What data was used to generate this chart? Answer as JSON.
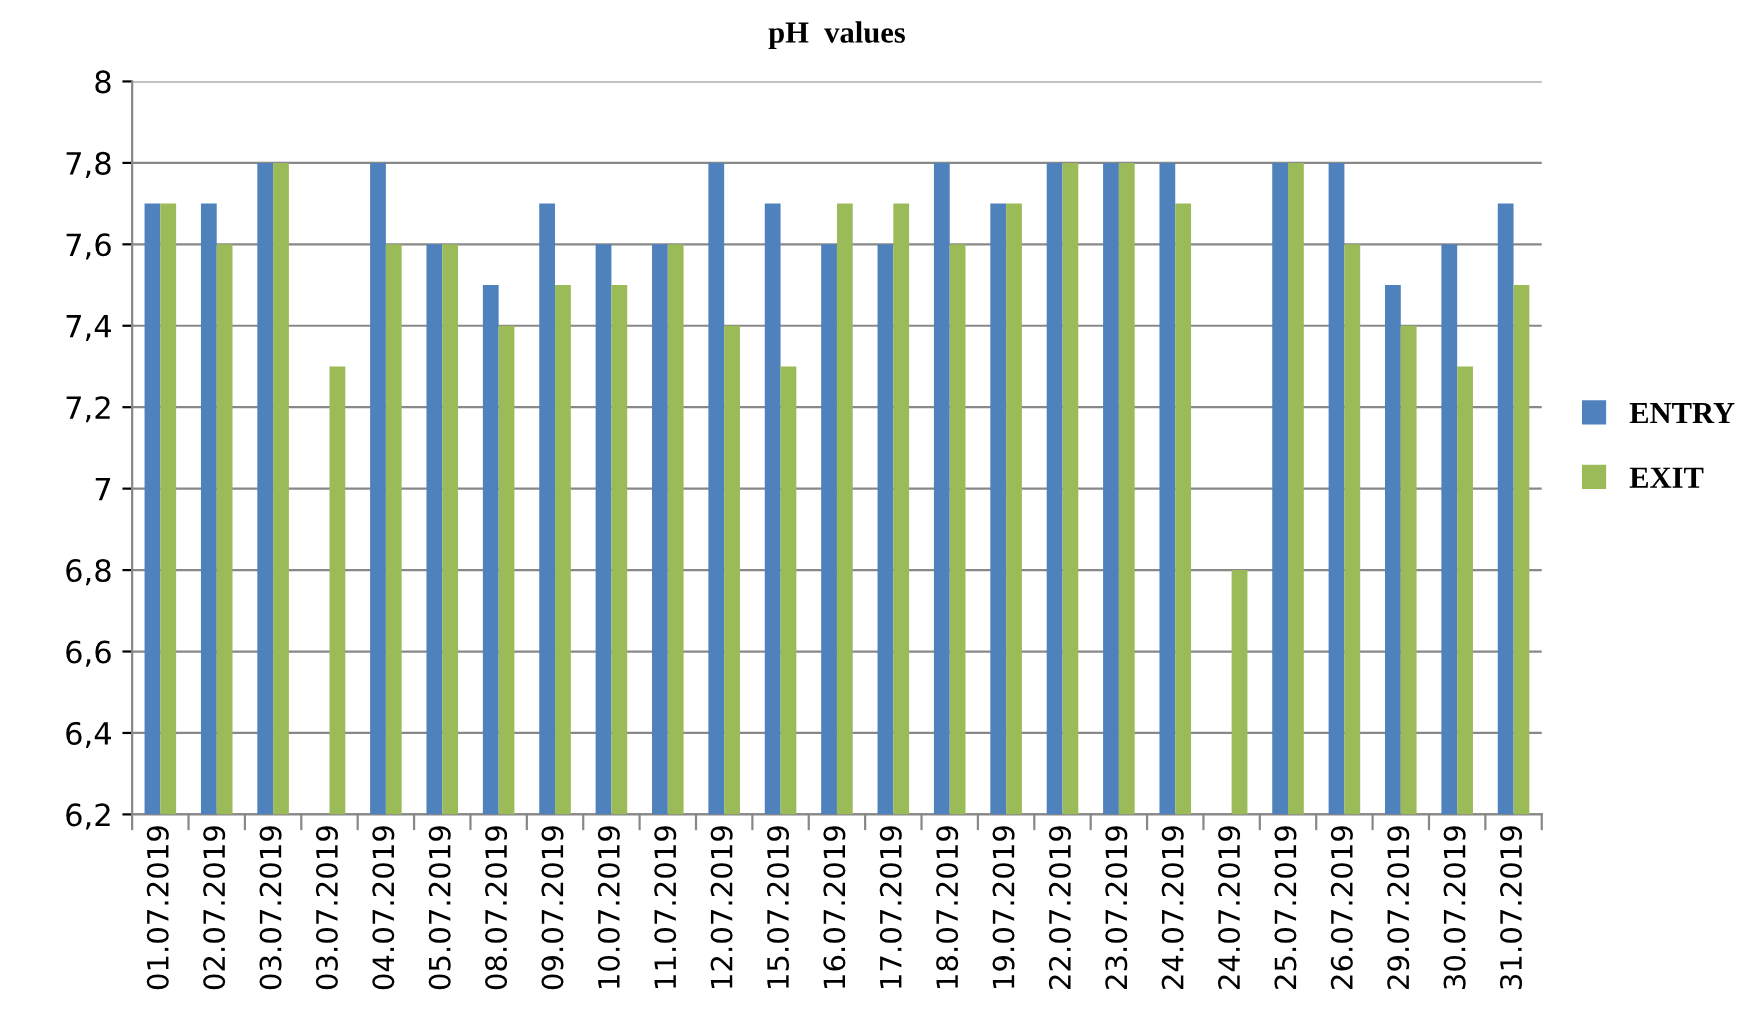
{
  "chart_data": {
    "type": "bar",
    "title": "pH  values",
    "categories": [
      "01.07.2019",
      "02.07.2019",
      "03.07.2019",
      "03.07.2019",
      "04.07.2019",
      "05.07.2019",
      "08.07.2019",
      "09.07.2019",
      "10.07.2019",
      "11.07.2019",
      "12.07.2019",
      "15.07.2019",
      "16.07.2019",
      "17.07.2019",
      "18.07.2019",
      "19.07.2019",
      "22.07.2019",
      "23.07.2019",
      "24.07.2019",
      "24.07.2019",
      "25.07.2019",
      "26.07.2019",
      "29.07.2019",
      "30.07.2019",
      "31.07.2019"
    ],
    "series": [
      {
        "name": "ENTRY",
        "color": "#4f81bd",
        "values": [
          7.7,
          7.7,
          7.8,
          null,
          7.8,
          7.6,
          7.5,
          7.7,
          7.6,
          7.6,
          7.8,
          7.7,
          7.6,
          7.6,
          7.8,
          7.7,
          7.8,
          7.8,
          7.8,
          null,
          7.8,
          7.8,
          7.5,
          7.6,
          7.7
        ]
      },
      {
        "name": "EXIT",
        "color": "#9bbb59",
        "values": [
          7.7,
          7.6,
          7.8,
          7.3,
          7.6,
          7.6,
          7.4,
          7.5,
          7.5,
          7.6,
          7.4,
          7.3,
          7.7,
          7.7,
          7.6,
          7.7,
          7.8,
          7.8,
          7.7,
          6.8,
          7.8,
          7.6,
          7.4,
          7.3,
          7.5
        ]
      }
    ],
    "ylim": [
      6.2,
      8
    ],
    "yticks": [
      {
        "value": 6.2,
        "label": "6,2"
      },
      {
        "value": 6.4,
        "label": "6,4"
      },
      {
        "value": 6.6,
        "label": "6,6"
      },
      {
        "value": 6.8,
        "label": "6,8"
      },
      7,
      {
        "value": 7.2,
        "label": "7,2"
      },
      {
        "value": 7.4,
        "label": "7,4"
      },
      {
        "value": 7.6,
        "label": "7,6"
      },
      {
        "value": 7.8,
        "label": "7,8"
      },
      8
    ],
    "grid": "y",
    "legend": "right"
  }
}
